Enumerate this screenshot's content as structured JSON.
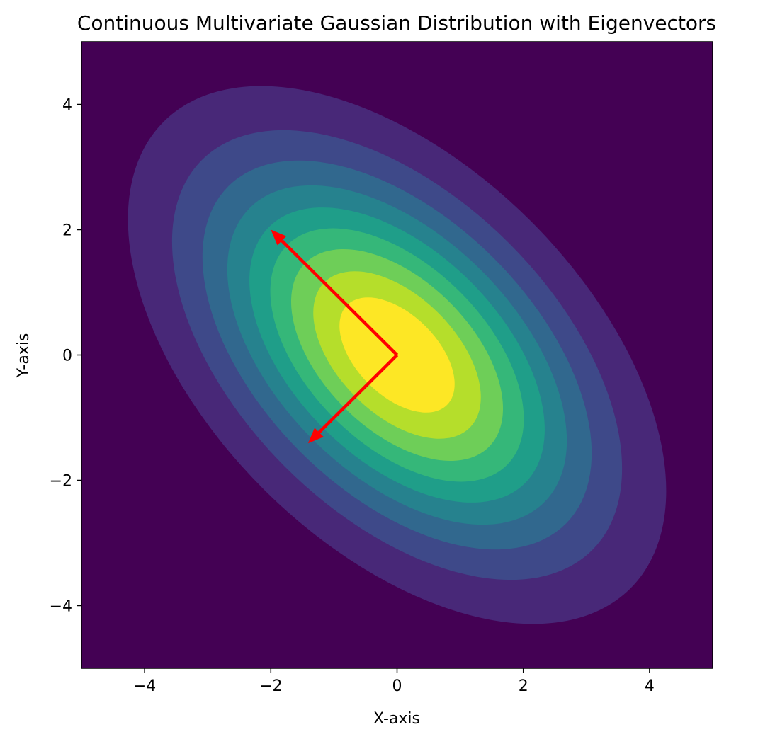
{
  "chart_data": {
    "type": "heatmap",
    "subtype": "filled-contour",
    "title": "Continuous Multivariate Gaussian Distribution with Eigenvectors",
    "xlabel": "X-axis",
    "ylabel": "Y-axis",
    "xlim": [
      -5,
      5
    ],
    "ylim": [
      -5,
      5
    ],
    "xticks": [
      -4,
      -2,
      0,
      2,
      4
    ],
    "yticks": [
      -4,
      -2,
      0,
      2,
      4
    ],
    "xtick_labels": [
      "−4",
      "−2",
      "0",
      "2",
      "4"
    ],
    "ytick_labels": [
      "−4",
      "−2",
      "0",
      "2",
      "4"
    ],
    "grid": false,
    "legend": "none",
    "colormap": "viridis",
    "colormap_stops": [
      "#440154",
      "#482878",
      "#3e4989",
      "#31688e",
      "#26828e",
      "#1f9e89",
      "#35b779",
      "#6ece58",
      "#b5de2b",
      "#fde725"
    ],
    "distribution": {
      "mean": [
        0,
        0
      ],
      "covariance": [
        [
          2,
          -1
        ],
        [
          -1,
          2
        ]
      ],
      "contour_levels": 10
    },
    "eigenvectors": {
      "color": "#ff0000",
      "origin": [
        0,
        0
      ],
      "vectors": [
        {
          "dx": -2,
          "dy": 2
        },
        {
          "dx": -1.41,
          "dy": -1.41
        }
      ]
    }
  }
}
